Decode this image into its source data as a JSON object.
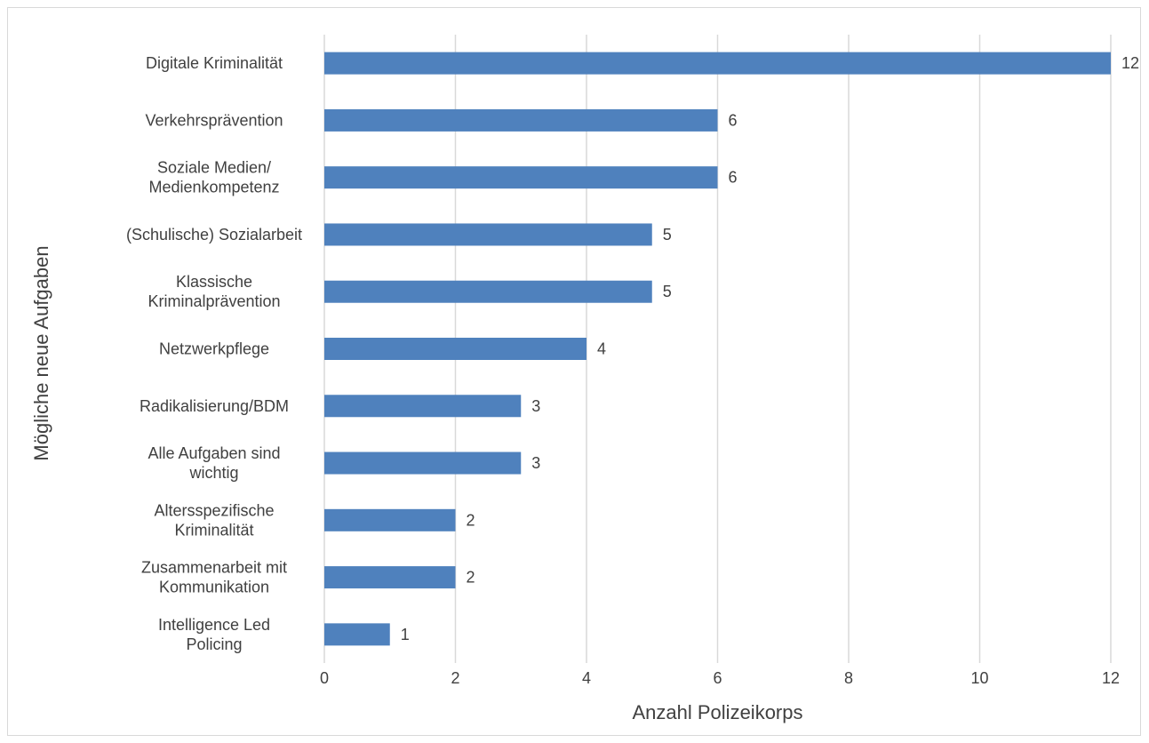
{
  "chart_data": {
    "type": "bar",
    "orientation": "horizontal",
    "categories": [
      [
        "Digitale Kriminalität"
      ],
      [
        "Verkehrsprävention"
      ],
      [
        "Soziale Medien/",
        "Medienkompetenz"
      ],
      [
        "(Schulische) Sozialarbeit"
      ],
      [
        "Klassische",
        "Kriminalprävention"
      ],
      [
        "Netzwerkpflege"
      ],
      [
        "Radikalisierung/BDM"
      ],
      [
        "Alle Aufgaben sind",
        "wichtig"
      ],
      [
        "Altersspezifische",
        "Kriminalität"
      ],
      [
        "Zusammenarbeit mit",
        "Kommunikation"
      ],
      [
        "Intelligence Led",
        "Policing"
      ]
    ],
    "values": [
      12,
      6,
      6,
      5,
      5,
      4,
      3,
      3,
      2,
      2,
      1
    ],
    "xlabel": "Anzahl Polizeikorps",
    "ylabel": "Mögliche neue Aufgaben",
    "xlim": [
      0,
      12
    ],
    "xticks": [
      0,
      2,
      4,
      6,
      8,
      10,
      12
    ],
    "grid": true,
    "data_labels": true,
    "bar_color": "#4f81bd",
    "grid_color": "#d9d9d9",
    "text_color": "#404040"
  }
}
